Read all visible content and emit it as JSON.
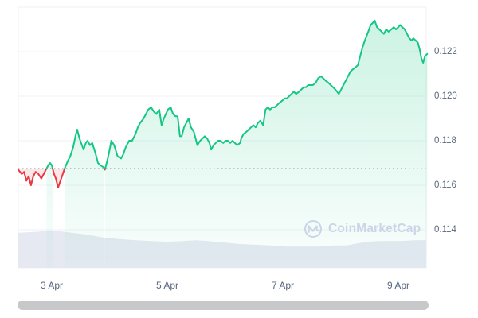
{
  "watermark": {
    "text": "CoinMarketCap",
    "logo_icon": "coinmarketcap-logo"
  },
  "chart_data": {
    "type": "line",
    "title": "",
    "xlabel": "",
    "ylabel": "",
    "legend": "none",
    "grid": "horizontal",
    "x_axis": {
      "ticks": [
        {
          "label": "3 Apr",
          "day": 3
        },
        {
          "label": "5 Apr",
          "day": 5
        },
        {
          "label": "7 Apr",
          "day": 7
        },
        {
          "label": "9 Apr",
          "day": 9
        }
      ]
    },
    "y_axis": {
      "side": "right",
      "ticks": [
        {
          "label": "0.122",
          "value": 0.122
        },
        {
          "label": "0.120",
          "value": 0.12
        },
        {
          "label": "0.118",
          "value": 0.118
        },
        {
          "label": "0.116",
          "value": 0.116
        },
        {
          "label": "0.114",
          "value": 0.114
        }
      ],
      "visible_range": [
        0.1123,
        0.124
      ]
    },
    "baseline": {
      "value": 0.11675,
      "style": "dotted"
    },
    "series": {
      "name": "price",
      "x_unit": "day-of-April",
      "points": [
        [
          2.42,
          0.1167
        ],
        [
          2.48,
          0.1165
        ],
        [
          2.52,
          0.1166
        ],
        [
          2.56,
          0.1162
        ],
        [
          2.6,
          0.1164
        ],
        [
          2.64,
          0.116
        ],
        [
          2.68,
          0.1164
        ],
        [
          2.72,
          0.1166
        ],
        [
          2.77,
          0.1165
        ],
        [
          2.82,
          0.1163
        ],
        [
          2.86,
          0.1165
        ],
        [
          2.9,
          0.1167
        ],
        [
          2.94,
          0.1169
        ],
        [
          2.97,
          0.117
        ],
        [
          3.0,
          0.1169
        ],
        [
          3.04,
          0.1165
        ],
        [
          3.07,
          0.1163
        ],
        [
          3.11,
          0.1159
        ],
        [
          3.15,
          0.1162
        ],
        [
          3.19,
          0.1165
        ],
        [
          3.23,
          0.1168
        ],
        [
          3.28,
          0.1171
        ],
        [
          3.32,
          0.1173
        ],
        [
          3.37,
          0.1177
        ],
        [
          3.41,
          0.1182
        ],
        [
          3.44,
          0.1185
        ],
        [
          3.48,
          0.1181
        ],
        [
          3.55,
          0.1176
        ],
        [
          3.59,
          0.1179
        ],
        [
          3.62,
          0.118
        ],
        [
          3.66,
          0.1178
        ],
        [
          3.7,
          0.1179
        ],
        [
          3.76,
          0.1174
        ],
        [
          3.8,
          0.117
        ],
        [
          3.84,
          0.1169
        ],
        [
          3.9,
          0.1168
        ],
        [
          3.92,
          0.1167
        ],
        [
          3.97,
          0.1172
        ],
        [
          4.01,
          0.1177
        ],
        [
          4.03,
          0.118
        ],
        [
          4.08,
          0.1178
        ],
        [
          4.14,
          0.1173
        ],
        [
          4.2,
          0.1172
        ],
        [
          4.24,
          0.1174
        ],
        [
          4.28,
          0.1177
        ],
        [
          4.34,
          0.118
        ],
        [
          4.39,
          0.118
        ],
        [
          4.45,
          0.1183
        ],
        [
          4.49,
          0.1186
        ],
        [
          4.53,
          0.1188
        ],
        [
          4.59,
          0.119
        ],
        [
          4.63,
          0.1192
        ],
        [
          4.67,
          0.1194
        ],
        [
          4.72,
          0.1195
        ],
        [
          4.77,
          0.1193
        ],
        [
          4.81,
          0.1192
        ],
        [
          4.86,
          0.1194
        ],
        [
          4.9,
          0.1187
        ],
        [
          4.94,
          0.119
        ],
        [
          5.01,
          0.1194
        ],
        [
          5.06,
          0.1195
        ],
        [
          5.1,
          0.1192
        ],
        [
          5.14,
          0.1191
        ],
        [
          5.18,
          0.1191
        ],
        [
          5.22,
          0.1182
        ],
        [
          5.25,
          0.1182
        ],
        [
          5.29,
          0.1186
        ],
        [
          5.33,
          0.1188
        ],
        [
          5.37,
          0.119
        ],
        [
          5.41,
          0.1186
        ],
        [
          5.46,
          0.1184
        ],
        [
          5.5,
          0.118
        ],
        [
          5.52,
          0.1178
        ],
        [
          5.57,
          0.118
        ],
        [
          5.61,
          0.1181
        ],
        [
          5.65,
          0.1182
        ],
        [
          5.69,
          0.1181
        ],
        [
          5.73,
          0.1179
        ],
        [
          5.76,
          0.1176
        ],
        [
          5.8,
          0.1178
        ],
        [
          5.84,
          0.1179
        ],
        [
          5.88,
          0.118
        ],
        [
          5.92,
          0.118
        ],
        [
          5.97,
          0.1179
        ],
        [
          6.01,
          0.118
        ],
        [
          6.05,
          0.118
        ],
        [
          6.09,
          0.1179
        ],
        [
          6.13,
          0.118
        ],
        [
          6.17,
          0.1179
        ],
        [
          6.21,
          0.1178
        ],
        [
          6.26,
          0.1179
        ],
        [
          6.28,
          0.1181
        ],
        [
          6.32,
          0.1183
        ],
        [
          6.37,
          0.1184
        ],
        [
          6.41,
          0.1185
        ],
        [
          6.45,
          0.1186
        ],
        [
          6.49,
          0.1187
        ],
        [
          6.53,
          0.1186
        ],
        [
          6.57,
          0.1188
        ],
        [
          6.61,
          0.1189
        ],
        [
          6.66,
          0.1187
        ],
        [
          6.7,
          0.1194
        ],
        [
          6.74,
          0.1195
        ],
        [
          6.78,
          0.1194
        ],
        [
          6.82,
          0.1195
        ],
        [
          6.86,
          0.1195
        ],
        [
          6.9,
          0.1196
        ],
        [
          6.94,
          0.1197
        ],
        [
          6.99,
          0.1198
        ],
        [
          7.03,
          0.1199
        ],
        [
          7.07,
          0.1199
        ],
        [
          7.11,
          0.12
        ],
        [
          7.15,
          0.1201
        ],
        [
          7.19,
          0.1202
        ],
        [
          7.23,
          0.1201
        ],
        [
          7.28,
          0.1202
        ],
        [
          7.32,
          0.1203
        ],
        [
          7.36,
          0.1204
        ],
        [
          7.4,
          0.1204
        ],
        [
          7.44,
          0.1205
        ],
        [
          7.48,
          0.1205
        ],
        [
          7.52,
          0.1205
        ],
        [
          7.57,
          0.1206
        ],
        [
          7.61,
          0.1208
        ],
        [
          7.66,
          0.1209
        ],
        [
          7.7,
          0.1208
        ],
        [
          7.74,
          0.1207
        ],
        [
          7.79,
          0.1206
        ],
        [
          7.83,
          0.1205
        ],
        [
          7.87,
          0.1204
        ],
        [
          7.91,
          0.1203
        ],
        [
          7.97,
          0.1201
        ],
        [
          8.01,
          0.1203
        ],
        [
          8.05,
          0.1205
        ],
        [
          8.09,
          0.1207
        ],
        [
          8.13,
          0.1209
        ],
        [
          8.17,
          0.1211
        ],
        [
          8.21,
          0.1212
        ],
        [
          8.26,
          0.1213
        ],
        [
          8.3,
          0.1214
        ],
        [
          8.34,
          0.1218
        ],
        [
          8.38,
          0.1222
        ],
        [
          8.42,
          0.1225
        ],
        [
          8.48,
          0.1229
        ],
        [
          8.52,
          0.1232
        ],
        [
          8.56,
          0.1233
        ],
        [
          8.59,
          0.1234
        ],
        [
          8.63,
          0.1231
        ],
        [
          8.67,
          0.123
        ],
        [
          8.71,
          0.1229
        ],
        [
          8.75,
          0.1228
        ],
        [
          8.79,
          0.123
        ],
        [
          8.83,
          0.1229
        ],
        [
          8.88,
          0.123
        ],
        [
          8.92,
          0.1231
        ],
        [
          8.96,
          0.123
        ],
        [
          9.0,
          0.1231
        ],
        [
          9.03,
          0.1232
        ],
        [
          9.07,
          0.1231
        ],
        [
          9.11,
          0.123
        ],
        [
          9.15,
          0.1228
        ],
        [
          9.19,
          0.1226
        ],
        [
          9.23,
          0.1225
        ],
        [
          9.26,
          0.1226
        ],
        [
          9.3,
          0.1225
        ],
        [
          9.34,
          0.1224
        ],
        [
          9.37,
          0.1221
        ],
        [
          9.4,
          0.1217
        ],
        [
          9.43,
          0.1215
        ],
        [
          9.46,
          0.1218
        ],
        [
          9.5,
          0.1219
        ]
      ]
    },
    "navigator": {
      "points": [
        [
          0.0,
          0.94
        ],
        [
          0.033,
          0.96
        ],
        [
          0.063,
          0.98
        ],
        [
          0.082,
          1.0
        ],
        [
          0.102,
          0.98
        ],
        [
          0.131,
          0.94
        ],
        [
          0.17,
          0.89
        ],
        [
          0.209,
          0.81
        ],
        [
          0.248,
          0.77
        ],
        [
          0.287,
          0.74
        ],
        [
          0.326,
          0.72
        ],
        [
          0.365,
          0.7
        ],
        [
          0.404,
          0.72
        ],
        [
          0.434,
          0.74
        ],
        [
          0.463,
          0.72
        ],
        [
          0.502,
          0.68
        ],
        [
          0.541,
          0.64
        ],
        [
          0.58,
          0.62
        ],
        [
          0.619,
          0.6
        ],
        [
          0.658,
          0.57
        ],
        [
          0.697,
          0.57
        ],
        [
          0.736,
          0.57
        ],
        [
          0.775,
          0.6
        ],
        [
          0.805,
          0.6
        ],
        [
          0.834,
          0.66
        ],
        [
          0.854,
          0.7
        ],
        [
          0.883,
          0.72
        ],
        [
          0.912,
          0.72
        ],
        [
          0.941,
          0.72
        ],
        [
          0.971,
          0.74
        ],
        [
          1.0,
          0.74
        ]
      ]
    },
    "colors": {
      "up": "#16c784",
      "down": "#ea3943",
      "down_fill": "rgba(234,57,67,0.12)",
      "grid": "#eff2f5",
      "baseline": "#9ba4b5",
      "navigator_fill": "#e6e9f2",
      "axis_label": "#58667e",
      "watermark": "#ccd4e8",
      "scrollbar": "#c7c8ca"
    }
  }
}
